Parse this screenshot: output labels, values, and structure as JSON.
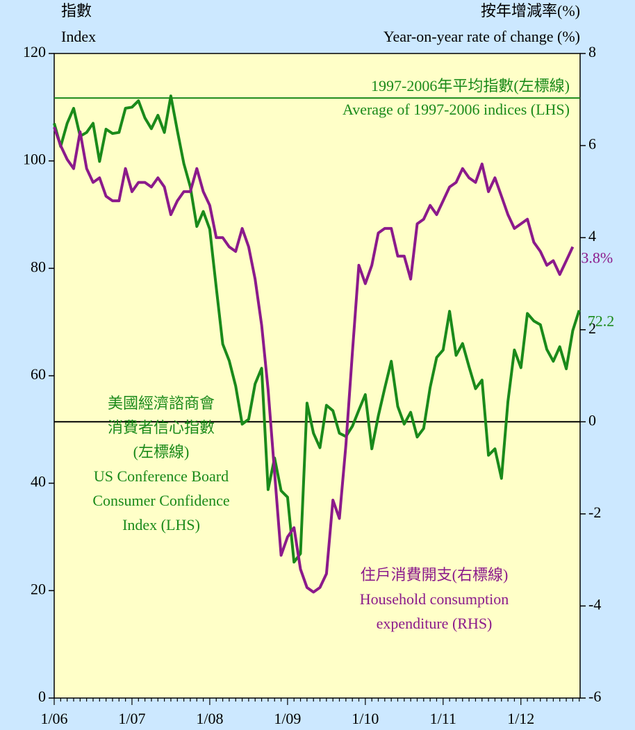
{
  "chart_data": {
    "type": "line",
    "y_label": [
      "指數",
      "Index"
    ],
    "y2_label": [
      "按年增減率(%)",
      "Year-on-year rate of change (%)"
    ],
    "categories": [
      "1/06",
      null,
      null,
      null,
      null,
      null,
      null,
      null,
      null,
      null,
      null,
      null,
      "1/07",
      null,
      null,
      null,
      null,
      null,
      null,
      null,
      null,
      null,
      null,
      null,
      "1/08",
      null,
      null,
      null,
      null,
      null,
      null,
      null,
      null,
      null,
      null,
      null,
      "1/09",
      null,
      null,
      null,
      null,
      null,
      null,
      null,
      null,
      null,
      null,
      null,
      "1/10",
      null,
      null,
      null,
      null,
      null,
      null,
      null,
      null,
      null,
      null,
      null,
      "1/11",
      null,
      null,
      null,
      null,
      null,
      null,
      null,
      null,
      null,
      null,
      null,
      "1/12",
      null,
      null,
      null,
      null,
      null,
      null,
      null,
      null,
      null
    ],
    "series": [
      {
        "name": [
          "美國經濟諮商會",
          "消費者信心指數",
          "(左標線)",
          "US Conference Board",
          "Consumer Confidence",
          "Index (LHS)"
        ],
        "color": "#1a8a1a",
        "axis": "y",
        "values": [
          107,
          102.7,
          107,
          109.8,
          104.6,
          105.3,
          107,
          99.9,
          105.9,
          105.1,
          105.3,
          109.8,
          110,
          111.2,
          108,
          106,
          108.5,
          105.3,
          112.1,
          105.6,
          99.5,
          95.2,
          87.8,
          90.6,
          87.3,
          76.4,
          65.9,
          62.8,
          58.1,
          51,
          51.9,
          58.5,
          61.4,
          38.8,
          44.7,
          38.6,
          37.4,
          25.3,
          26.9,
          54.9,
          49.3,
          46.6,
          54.5,
          53.5,
          49.3,
          48.7,
          50.6,
          53.6,
          56.5,
          46.4,
          52.5,
          57.7,
          62.7,
          54.3,
          51,
          53.2,
          48.6,
          50.2,
          57.8,
          63.4,
          64.8,
          72,
          63.8,
          66,
          61.7,
          57.6,
          59.2,
          45.2,
          46.4,
          40.9,
          55.2,
          64.8,
          61.5,
          71.6,
          70.2,
          69.5,
          64.9,
          62.7,
          65.4,
          61.3,
          68.4,
          72.2
        ],
        "value_labels": [
          null,
          null,
          null,
          null,
          null,
          null,
          null,
          null,
          null,
          null,
          null,
          null,
          null,
          null,
          null,
          null,
          null,
          null,
          null,
          null,
          null,
          null,
          null,
          null,
          null,
          null,
          null,
          null,
          null,
          null,
          null,
          null,
          null,
          null,
          null,
          null,
          null,
          null,
          null,
          null,
          null,
          null,
          null,
          null,
          null,
          null,
          null,
          null,
          null,
          null,
          null,
          null,
          null,
          null,
          null,
          null,
          null,
          null,
          null,
          null,
          null,
          null,
          null,
          null,
          null,
          null,
          null,
          null,
          null,
          null,
          null,
          null,
          null,
          null,
          null,
          null,
          null,
          null,
          null,
          null,
          null,
          "72.2"
        ]
      },
      {
        "name": [
          "住戶消費開支(右標線)",
          "Household consumption",
          "expenditure (RHS)"
        ],
        "color": "#8b1a8b",
        "axis": "y2",
        "values": [
          6.4,
          6.0,
          5.7,
          5.5,
          6.3,
          5.5,
          5.2,
          5.3,
          4.9,
          4.8,
          4.8,
          5.5,
          5.0,
          5.2,
          5.2,
          5.1,
          5.3,
          5.1,
          4.5,
          4.8,
          5.0,
          5.0,
          5.5,
          5.0,
          4.7,
          4.0,
          4.0,
          3.8,
          3.7,
          4.2,
          3.8,
          3.1,
          2.1,
          0.7,
          -1.1,
          -2.9,
          -2.5,
          -2.3,
          -3.2,
          -3.6,
          -3.7,
          -3.6,
          -3.3,
          -1.7,
          -2.1,
          -0.5,
          1.5,
          3.4,
          3.0,
          3.4,
          4.1,
          4.2,
          4.2,
          3.6,
          3.6,
          3.1,
          4.3,
          4.4,
          4.7,
          4.5,
          4.8,
          5.1,
          5.2,
          5.5,
          5.3,
          5.2,
          5.6,
          5.0,
          5.3,
          4.9,
          4.5,
          4.2,
          4.3,
          4.4,
          3.9,
          3.7,
          3.4,
          3.5,
          3.2,
          3.5,
          3.8,
          null
        ],
        "value_labels": [
          null,
          null,
          null,
          null,
          null,
          null,
          null,
          null,
          null,
          null,
          null,
          null,
          null,
          null,
          null,
          null,
          null,
          null,
          null,
          null,
          null,
          null,
          null,
          null,
          null,
          null,
          null,
          null,
          null,
          null,
          null,
          null,
          null,
          null,
          null,
          null,
          null,
          null,
          null,
          null,
          null,
          null,
          null,
          null,
          null,
          null,
          null,
          null,
          null,
          null,
          null,
          null,
          null,
          null,
          null,
          null,
          null,
          null,
          null,
          null,
          null,
          null,
          null,
          null,
          null,
          null,
          null,
          null,
          null,
          null,
          null,
          null,
          null,
          null,
          null,
          null,
          null,
          null,
          null,
          null,
          "3.8%",
          null
        ]
      }
    ],
    "reference_lines": [
      {
        "value": 111.7,
        "axis": "y",
        "color": "#1a8a1a",
        "label": [
          "1997-2006年平均指數(左標線)",
          "Average of 1997-2006 indices (LHS)"
        ]
      },
      {
        "value": 0,
        "axis": "y2",
        "color": "#000000"
      }
    ],
    "ylim": [
      0,
      120
    ],
    "yticks": [
      0,
      20,
      40,
      60,
      80,
      100,
      120
    ],
    "y2lim": [
      -6,
      8
    ],
    "y2ticks": [
      -6,
      -4,
      -2,
      0,
      2,
      4,
      6,
      8
    ],
    "plot_background": "#ffffc8"
  }
}
